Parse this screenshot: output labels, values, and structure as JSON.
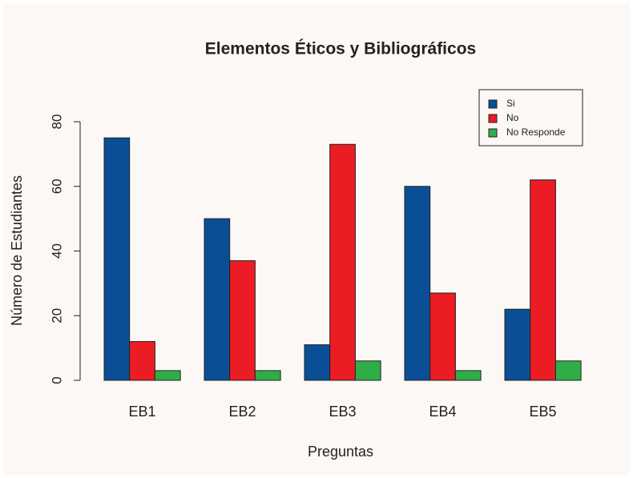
{
  "chart_data": {
    "type": "bar",
    "title": "Elementos Éticos y Bibliográficos",
    "x_label": "Preguntas",
    "y_label": "Número de Estudiantes",
    "categories": [
      "EB1",
      "EB2",
      "EB3",
      "EB4",
      "EB5"
    ],
    "series": [
      {
        "name": "Si",
        "color": "#0a4f96",
        "values": [
          75,
          50,
          11,
          60,
          22
        ]
      },
      {
        "name": "No",
        "color": "#ec1c24",
        "values": [
          12,
          37,
          73,
          27,
          62
        ]
      },
      {
        "name": "No Responde",
        "color": "#2fae48",
        "values": [
          3,
          3,
          6,
          3,
          6
        ]
      }
    ],
    "ylim": [
      0,
      80
    ],
    "yticks": [
      0,
      20,
      40,
      60,
      80
    ],
    "legend": "topright"
  }
}
